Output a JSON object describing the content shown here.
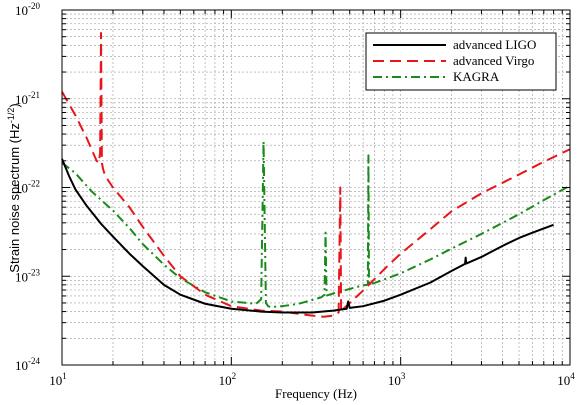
{
  "chart_data": {
    "type": "line",
    "xlabel": "Frequency (Hz)",
    "ylabel": "Strain noise spectrum (Hz",
    "ylabel_exponent": "-1/2",
    "ylabel_suffix": ")",
    "x_scale": "log",
    "y_scale": "log",
    "xlim": [
      10,
      10000
    ],
    "ylim": [
      1e-24,
      1e-20
    ],
    "x_ticks": [
      {
        "value": 10,
        "base": "10",
        "exp": "1"
      },
      {
        "value": 100,
        "base": "10",
        "exp": "2"
      },
      {
        "value": 1000,
        "base": "10",
        "exp": "3"
      },
      {
        "value": 10000,
        "base": "10",
        "exp": "4"
      }
    ],
    "y_ticks": [
      {
        "value": 1e-24,
        "base": "10",
        "exp": "-24"
      },
      {
        "value": 1e-23,
        "base": "10",
        "exp": "-23"
      },
      {
        "value": 1e-22,
        "base": "10",
        "exp": "-22"
      },
      {
        "value": 1e-21,
        "base": "10",
        "exp": "-21"
      },
      {
        "value": 1e-20,
        "base": "10",
        "exp": "-20"
      }
    ],
    "grid": true,
    "legend_position": "top-right",
    "series": [
      {
        "name": "advanced LIGO",
        "color": "#000000",
        "style": "solid",
        "x": [
          10,
          11,
          12,
          14,
          17,
          20,
          25,
          30,
          40,
          50,
          70,
          100,
          150,
          200,
          300,
          400,
          480,
          490,
          500,
          600,
          800,
          1000,
          1500,
          2000,
          2400,
          2420,
          2440,
          3000,
          4000,
          5000,
          6000,
          8000
        ],
        "y": [
          2.1e-22,
          1.35e-22,
          9.5e-23,
          6.2e-23,
          3.9e-23,
          2.8e-23,
          1.8e-23,
          1.3e-23,
          8e-24,
          6.2e-24,
          4.9e-24,
          4.3e-24,
          4e-24,
          3.9e-24,
          3.9e-24,
          4.1e-24,
          4.3e-24,
          5.2e-24,
          4.4e-24,
          4.6e-24,
          5.3e-24,
          6.2e-24,
          8.5e-24,
          1.15e-23,
          1.38e-23,
          1.62e-23,
          1.39e-23,
          1.65e-23,
          2.2e-23,
          2.7e-23,
          3.1e-23,
          3.8e-23
        ]
      },
      {
        "name": "advanced Virgo",
        "color": "#e8151b",
        "style": "dashed",
        "x": [
          10,
          12,
          14,
          16,
          16.5,
          16.8,
          17.0,
          17.2,
          17.5,
          18,
          20,
          25,
          30,
          40,
          50,
          70,
          100,
          150,
          200,
          300,
          350,
          400,
          430,
          440,
          445,
          450,
          460,
          500,
          600,
          800,
          1000,
          1500,
          2000,
          3000,
          5000,
          7000,
          10000
        ],
        "y": [
          1.2e-21,
          6.5e-22,
          3.6e-22,
          2e-22,
          1.9e-22,
          2.5e-22,
          5.5e-21,
          1.9e-22,
          1.6e-22,
          1.35e-22,
          1e-22,
          6e-23,
          3.6e-23,
          1.7e-23,
          1e-23,
          6.2e-24,
          4.6e-24,
          4.1e-24,
          4e-24,
          3.6e-24,
          3.5e-24,
          3.6e-24,
          3.9e-24,
          1e-22,
          3.9e-24,
          4.1e-24,
          4.3e-24,
          5e-24,
          6.9e-24,
          1.2e-23,
          1.8e-23,
          3.4e-23,
          5.4e-23,
          8.6e-23,
          1.4e-22,
          1.95e-22,
          2.7e-22
        ]
      },
      {
        "name": "KAGRA",
        "color": "#1a8a1a",
        "style": "dashdot",
        "x": [
          10,
          12,
          15,
          20,
          25,
          30,
          40,
          50,
          70,
          100,
          140,
          150,
          155,
          160,
          165,
          170,
          200,
          250,
          300,
          340,
          355,
          360,
          365,
          370,
          400,
          500,
          600,
          630,
          640,
          645,
          650,
          660,
          700,
          800,
          1000,
          1500,
          2000,
          3000,
          5000,
          7000,
          10000
        ],
        "y": [
          1.9e-22,
          1.45e-22,
          9e-23,
          5.5e-23,
          3.5e-23,
          2.3e-23,
          1.35e-23,
          9.5e-24,
          6.6e-24,
          5.2e-24,
          4.9e-24,
          5.5e-24,
          3.3e-22,
          5e-24,
          4.6e-24,
          4.5e-24,
          4.6e-24,
          4.9e-24,
          5.4e-24,
          5.8e-24,
          6.2e-24,
          3.1e-23,
          6.1e-24,
          6.1e-24,
          6.4e-24,
          7.2e-24,
          7.9e-24,
          8e-24,
          8.1e-24,
          2.3e-22,
          8.1e-24,
          8.1e-24,
          8.4e-24,
          9.2e-24,
          1.08e-23,
          1.55e-23,
          2.05e-23,
          3e-23,
          5e-23,
          7.2e-23,
          1.05e-22
        ]
      }
    ]
  }
}
